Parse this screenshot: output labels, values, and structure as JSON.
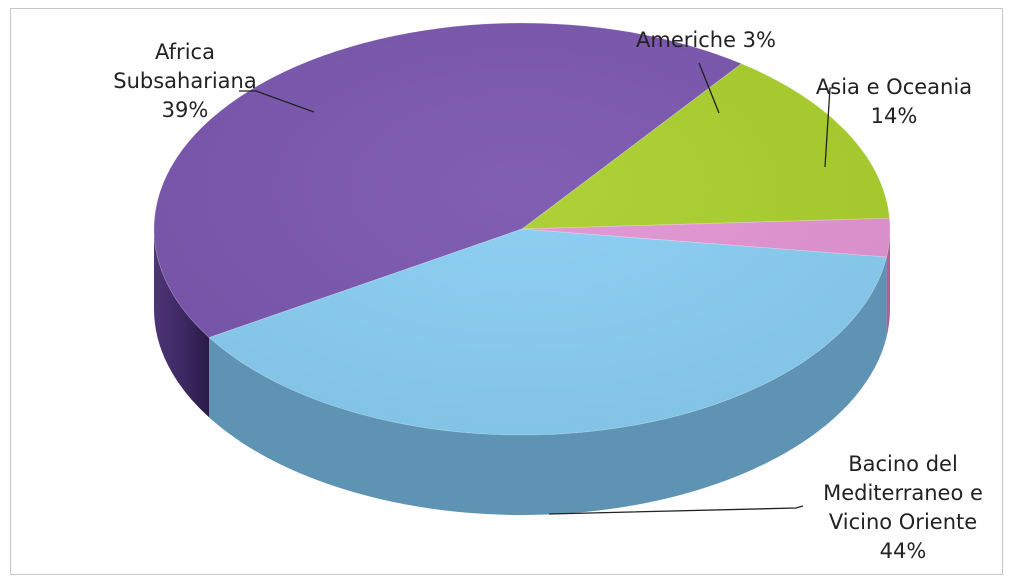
{
  "chart_data": {
    "type": "pie",
    "three_d": true,
    "categories": [
      "Asia e Oceania",
      "Bacino del Mediterraneo e Vicino Oriente",
      "Africa Subsahariana",
      "Americhe"
    ],
    "values": [
      14,
      44,
      39,
      3
    ],
    "value_labels": [
      "14%",
      "44%",
      "39%",
      "3%"
    ],
    "label_lines": [
      [
        "Asia e Oceania",
        "14%"
      ],
      [
        "Bacino del",
        "Mediterraneo e",
        "Vicino Oriente",
        "44%"
      ],
      [
        "Africa",
        "Subsahariana",
        "39%"
      ],
      [
        "Americhe 3%"
      ]
    ],
    "colors": [
      "#a9cf2c",
      "#7a56ae",
      "#88cdf2",
      "#e294d2"
    ],
    "side_colors": [
      "#6f8a1b",
      "#4b3177",
      "#5e93b3",
      "#a86499"
    ],
    "legend": "none"
  }
}
